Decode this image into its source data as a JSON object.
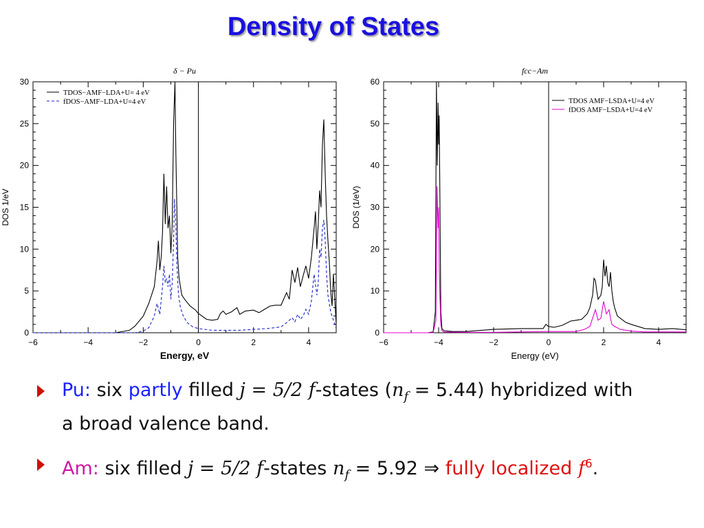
{
  "slide": {
    "title": "Density of States"
  },
  "colors": {
    "title": "#1a10e0",
    "pu_label": "#1a22ff",
    "am_label": "#cc1aa6",
    "highlight": "#e01010",
    "tdos": "#000000",
    "fdos_pu": "#1a22cc",
    "fdos_am": "#e000d0"
  },
  "chart_data": [
    {
      "type": "line",
      "title": "δ − Pu",
      "xlabel": "Energy, eV",
      "ylabel": "DOS 1/eV",
      "xlim": [
        -6,
        5
      ],
      "ylim": [
        0,
        30
      ],
      "xticks": [
        "−6",
        "−4",
        "−2",
        "0",
        "2",
        "4"
      ],
      "yticks": [
        "0",
        "5",
        "10",
        "15",
        "20",
        "25",
        "30"
      ],
      "grid": false,
      "legend": "top-left",
      "vline_x": 0,
      "series": [
        {
          "name": "TDOS−AMF−LDA+U= 4 eV",
          "style": "solid",
          "color": "#000000",
          "x": [
            -6,
            -3,
            -2.5,
            -2.3,
            -2.0,
            -1.8,
            -1.6,
            -1.5,
            -1.45,
            -1.4,
            -1.35,
            -1.3,
            -1.25,
            -1.2,
            -1.15,
            -1.1,
            -1.05,
            -1.0,
            -0.95,
            -0.9,
            -0.85,
            -0.82,
            -0.78,
            -0.75,
            -0.7,
            -0.6,
            -0.5,
            -0.3,
            -0.1,
            0.0,
            0.3,
            0.5,
            0.7,
            0.8,
            0.9,
            1.0,
            1.2,
            1.4,
            1.5,
            1.7,
            2.0,
            2.2,
            2.4,
            2.6,
            2.8,
            3.0,
            3.2,
            3.3,
            3.4,
            3.5,
            3.6,
            3.7,
            3.8,
            3.9,
            4.0,
            4.1,
            4.2,
            4.25,
            4.3,
            4.35,
            4.4,
            4.45,
            4.5,
            4.55,
            4.6,
            4.65,
            4.7,
            4.75,
            4.8,
            4.85,
            4.9,
            5.0
          ],
          "y": [
            0,
            0,
            0.3,
            0.8,
            2.0,
            3.5,
            5.5,
            8.5,
            11.0,
            7.5,
            9.0,
            12.0,
            19.0,
            13.0,
            17.5,
            12.5,
            14.0,
            9.5,
            13.0,
            25.0,
            30.0,
            22.0,
            14.5,
            9.0,
            6.5,
            4.5,
            4.0,
            3.2,
            2.7,
            2.3,
            1.6,
            1.5,
            1.6,
            2.3,
            2.6,
            2.2,
            2.5,
            3.0,
            2.2,
            2.6,
            2.7,
            2.4,
            2.8,
            3.2,
            3.3,
            3.3,
            4.8,
            4.0,
            7.5,
            6.0,
            7.8,
            5.5,
            6.8,
            8.0,
            6.5,
            9.0,
            12.5,
            14.5,
            10.0,
            13.0,
            17.0,
            15.0,
            22.5,
            25.5,
            19.0,
            14.0,
            11.0,
            8.5,
            5.0,
            3.2,
            7.0,
            1.0
          ]
        },
        {
          "name": "fDOS−AMF−LDA+U=4 eV",
          "style": "dashed",
          "color": "#1a22cc",
          "x": [
            -6,
            -2.3,
            -2.0,
            -1.8,
            -1.6,
            -1.5,
            -1.4,
            -1.3,
            -1.25,
            -1.2,
            -1.15,
            -1.1,
            -1.05,
            -1.0,
            -0.95,
            -0.9,
            -0.87,
            -0.82,
            -0.78,
            -0.72,
            -0.65,
            -0.55,
            -0.4,
            -0.2,
            0.0,
            0.5,
            1.0,
            1.5,
            2.0,
            2.5,
            3.0,
            3.2,
            3.4,
            3.5,
            3.6,
            3.7,
            3.8,
            3.9,
            4.0,
            4.1,
            4.2,
            4.3,
            4.35,
            4.4,
            4.45,
            4.5,
            4.55,
            4.6,
            4.65,
            4.7,
            4.8,
            4.9,
            5.0
          ],
          "y": [
            0,
            0,
            0.2,
            0.6,
            2.0,
            3.5,
            2.2,
            5.5,
            8.0,
            6.0,
            6.5,
            5.5,
            7.0,
            4.0,
            6.0,
            11.0,
            16.0,
            13.0,
            8.0,
            4.5,
            3.0,
            2.0,
            1.2,
            0.7,
            0.5,
            0.3,
            0.3,
            0.3,
            0.4,
            0.5,
            0.7,
            1.2,
            1.8,
            1.3,
            2.2,
            1.6,
            2.0,
            2.8,
            2.2,
            3.8,
            7.0,
            4.5,
            6.0,
            10.0,
            9.0,
            12.5,
            13.5,
            11.0,
            7.0,
            4.5,
            2.5,
            1.5,
            0.5
          ]
        }
      ]
    },
    {
      "type": "line",
      "title": "fcc−Am",
      "xlabel": "Energy (eV)",
      "ylabel": "DOS  (1/eV)",
      "xlim": [
        -6,
        5
      ],
      "ylim": [
        0,
        60
      ],
      "xticks": [
        "−6",
        "−4",
        "−2",
        "0",
        "2",
        "4"
      ],
      "yticks": [
        "0",
        "10",
        "20",
        "30",
        "40",
        "50",
        "60"
      ],
      "grid": false,
      "legend": "top-right",
      "vline_x": 0,
      "series": [
        {
          "name": "TDOS AMF−LSDA+U=4 eV",
          "style": "solid",
          "color": "#000000",
          "x": [
            -6,
            -4.4,
            -4.2,
            -4.12,
            -4.08,
            -4.05,
            -4.02,
            -4.0,
            -3.98,
            -3.95,
            -3.92,
            -3.88,
            -3.8,
            -3.5,
            -3.0,
            -2.0,
            -1.0,
            -0.2,
            -0.1,
            0.0,
            0.2,
            0.5,
            0.8,
            1.0,
            1.2,
            1.4,
            1.5,
            1.6,
            1.65,
            1.7,
            1.75,
            1.8,
            1.9,
            1.95,
            2.0,
            2.05,
            2.1,
            2.15,
            2.2,
            2.25,
            2.3,
            2.35,
            2.4,
            2.5,
            2.6,
            2.8,
            3.0,
            3.5,
            4.0,
            4.5,
            5.0
          ],
          "y": [
            0,
            0,
            0.2,
            5.0,
            62.0,
            40.0,
            55.0,
            45.0,
            52.0,
            30.0,
            5.0,
            1.0,
            0.5,
            0.3,
            0.3,
            0.8,
            1.0,
            1.0,
            2.0,
            1.5,
            1.3,
            1.8,
            2.8,
            3.0,
            3.2,
            4.5,
            6.0,
            9.0,
            13.0,
            12.5,
            10.0,
            8.0,
            9.0,
            11.0,
            17.5,
            13.5,
            16.0,
            12.0,
            11.0,
            14.5,
            10.0,
            7.5,
            6.0,
            4.0,
            3.5,
            2.5,
            2.0,
            1.0,
            0.8,
            1.0,
            0.7
          ]
        },
        {
          "name": "fDOS AMF−LSDA+U=4 eV",
          "style": "solid",
          "color": "#e000d0",
          "x": [
            -6,
            -4.2,
            -4.1,
            -4.06,
            -4.02,
            -4.0,
            -3.98,
            -3.95,
            -3.92,
            -3.88,
            -3.8,
            -3.0,
            -2.0,
            -1.0,
            0.0,
            0.5,
            1.0,
            1.3,
            1.5,
            1.6,
            1.7,
            1.8,
            1.9,
            2.0,
            2.05,
            2.1,
            2.2,
            2.25,
            2.3,
            2.4,
            2.5,
            2.6,
            3.0,
            3.5,
            4.0,
            5.0
          ],
          "y": [
            0,
            0,
            3.0,
            35.0,
            25.0,
            30.0,
            16.0,
            8.0,
            2.0,
            0.5,
            0.2,
            0.1,
            0.1,
            0.2,
            0.3,
            0.3,
            0.3,
            0.8,
            1.5,
            3.5,
            5.5,
            3.0,
            3.5,
            7.5,
            6.0,
            4.5,
            5.5,
            3.5,
            2.0,
            1.5,
            1.2,
            0.8,
            0.4,
            0.2,
            0.2,
            0.2
          ]
        }
      ]
    }
  ],
  "bullets": [
    {
      "label": "Pu:",
      "parts": [
        " six ",
        "partly",
        " filled ",
        "j = 5/2 f",
        "-states (",
        "n",
        "f",
        " = 5.44) hybridized with"
      ],
      "line2": "a broad valence band."
    },
    {
      "label": "Am:",
      "parts": [
        " six filled ",
        "j = 5/2 f",
        "-states ",
        "n",
        "f",
        " = 5.92 ⇒ ",
        "fully localized ",
        "f",
        "6",
        "."
      ]
    }
  ]
}
